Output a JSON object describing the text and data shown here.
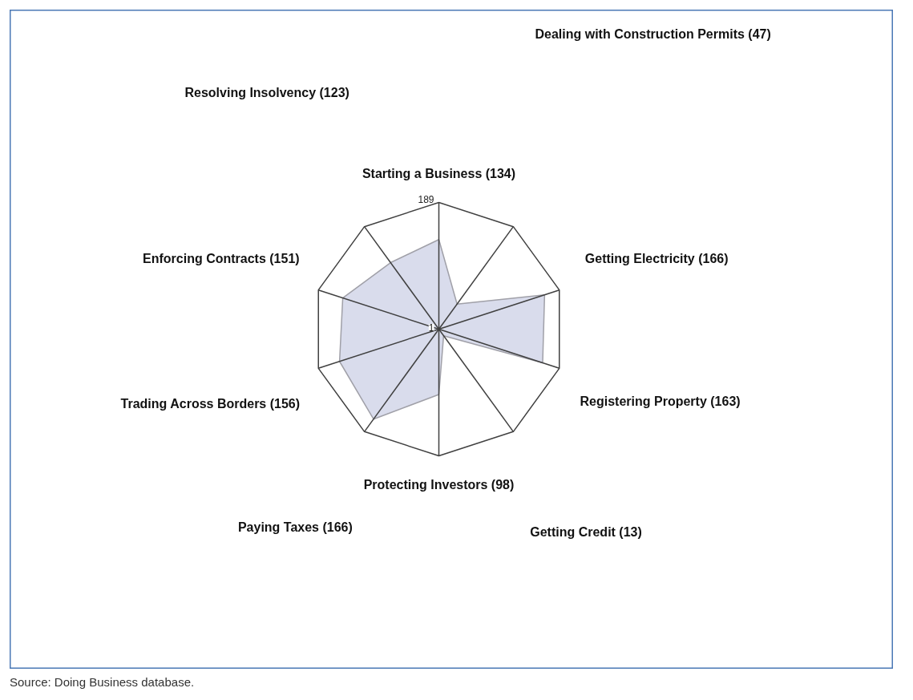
{
  "chart_data": {
    "type": "radar",
    "categories": [
      "Starting a Business (134)",
      "Dealing with Construction Permits (47)",
      "Getting Electricity (166)",
      "Registering Property (163)",
      "Getting Credit (13)",
      "Protecting Investors (98)",
      "Paying Taxes (166)",
      "Trading Across Borders (156)",
      "Enforcing Contracts (151)",
      "Resolving Insolvency (123)"
    ],
    "series": [
      {
        "color": "#d9dcec",
        "values": [
          134,
          47,
          166,
          163,
          13,
          98,
          166,
          156,
          151,
          123
        ]
      }
    ],
    "ylim": [
      1,
      189
    ],
    "yticks": [
      1,
      189
    ],
    "grid": true,
    "annotations": [
      "Source: Doing Business database."
    ]
  }
}
